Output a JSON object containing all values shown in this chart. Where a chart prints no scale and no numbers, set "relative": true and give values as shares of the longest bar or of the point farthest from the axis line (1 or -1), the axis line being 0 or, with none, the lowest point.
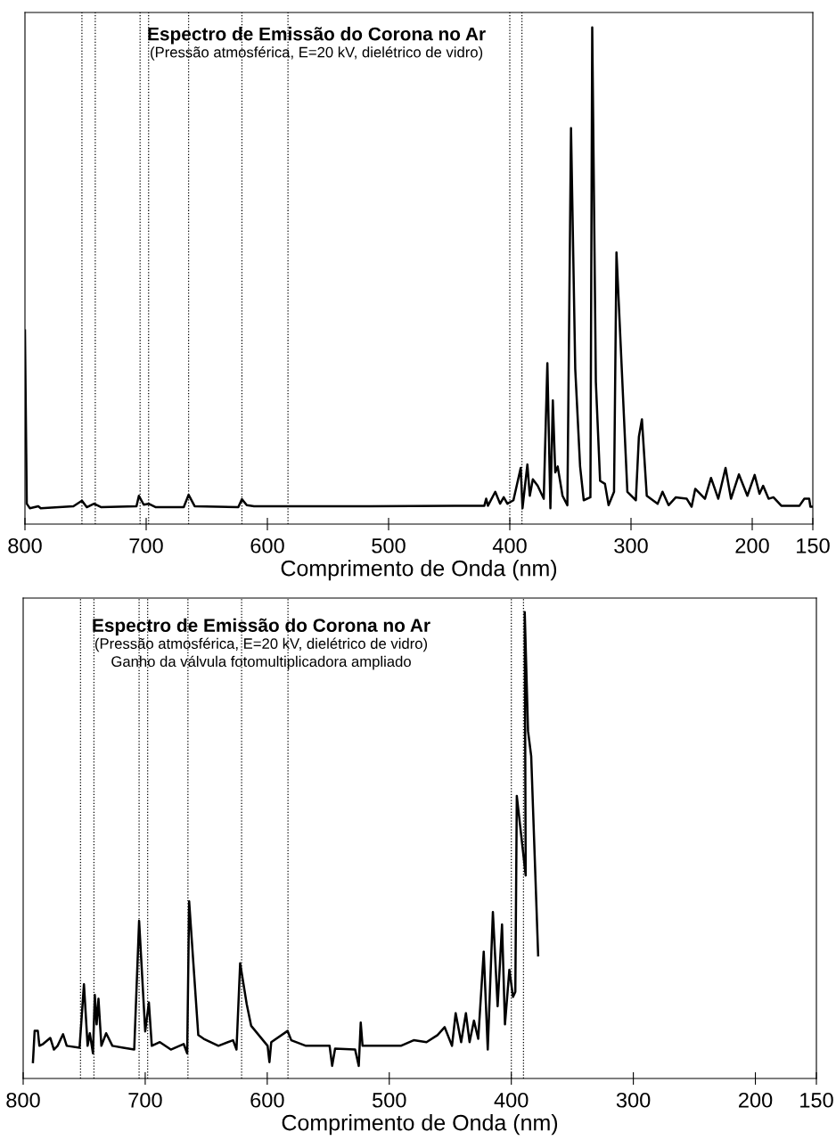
{
  "chart_data": [
    {
      "type": "line",
      "title": "Espectro de Emissão do Corona no Ar",
      "subtitle": "(Pressão atmosférica, E=20 kV, dielétrico de vidro)",
      "xlabel": "Comprimento de Onda (nm)",
      "relative": true,
      "xlim": [
        800,
        150
      ],
      "xticks": [
        800,
        700,
        600,
        500,
        400,
        300,
        200,
        150
      ],
      "line_style": "solid",
      "series": [
        {
          "color": "#000000",
          "x": [
            800,
            798.5,
            796,
            789,
            787,
            760,
            753,
            749,
            743,
            737,
            708,
            706,
            702,
            698,
            692,
            669,
            665,
            660,
            624,
            621,
            617,
            611,
            581,
            516,
            421,
            419.5,
            418,
            412,
            408,
            405,
            402,
            397,
            391,
            389.5,
            385.5,
            383.5,
            381,
            377,
            372,
            369,
            366.5,
            364.5,
            362.5,
            360.5,
            356.5,
            352.5,
            349.5,
            346,
            342,
            339,
            333.5,
            332,
            329,
            325.5,
            321.5,
            318.5,
            314,
            312,
            303,
            296,
            293.5,
            291,
            287,
            278,
            274,
            269,
            263,
            254,
            250,
            247,
            239,
            234,
            228,
            222,
            217.5,
            211,
            204,
            198,
            194,
            191,
            186.5,
            182.5,
            176,
            161,
            157,
            153,
            152,
            150
          ],
          "values": [
            0.39,
            0.041,
            0.032,
            0.036,
            0.032,
            0.036,
            0.047,
            0.034,
            0.041,
            0.034,
            0.036,
            0.057,
            0.039,
            0.041,
            0.034,
            0.034,
            0.059,
            0.036,
            0.034,
            0.05,
            0.038,
            0.036,
            0.036,
            0.036,
            0.037,
            0.051,
            0.037,
            0.065,
            0.041,
            0.054,
            0.041,
            0.048,
            0.113,
            0.032,
            0.12,
            0.057,
            0.09,
            0.077,
            0.051,
            0.324,
            0.032,
            0.249,
            0.104,
            0.116,
            0.057,
            0.038,
            0.797,
            0.312,
            0.116,
            0.048,
            0.054,
            1.0,
            0.286,
            0.087,
            0.081,
            0.038,
            0.065,
            0.547,
            0.065,
            0.048,
            0.176,
            0.211,
            0.057,
            0.041,
            0.065,
            0.038,
            0.054,
            0.051,
            0.035,
            0.071,
            0.051,
            0.093,
            0.051,
            0.113,
            0.051,
            0.1,
            0.057,
            0.099,
            0.061,
            0.077,
            0.051,
            0.054,
            0.037,
            0.037,
            0.051,
            0.051,
            0.035,
            0.035
          ]
        }
      ],
      "ref_lines": [
        {
          "axis": "x",
          "value": 753,
          "color": "#000000",
          "line_style": "dotted"
        },
        {
          "axis": "x",
          "value": 742,
          "color": "#000000",
          "line_style": "dotted"
        },
        {
          "axis": "x",
          "value": 705,
          "color": "#000000",
          "line_style": "dotted"
        },
        {
          "axis": "x",
          "value": 698,
          "color": "#000000",
          "line_style": "dotted"
        },
        {
          "axis": "x",
          "value": 665,
          "color": "#000000",
          "line_style": "dotted"
        },
        {
          "axis": "x",
          "value": 621,
          "color": "#000000",
          "line_style": "dotted"
        },
        {
          "axis": "x",
          "value": 583,
          "color": "#000000",
          "line_style": "dotted"
        },
        {
          "axis": "x",
          "value": 400,
          "color": "#000000",
          "line_style": "dotted"
        },
        {
          "axis": "x",
          "value": 390,
          "color": "#000000",
          "line_style": "dotted"
        }
      ]
    },
    {
      "type": "line",
      "title": "Espectro de Emissão do Corona no Ar",
      "subtitle": "(Pressão atmosférica, E=20 kV, dielétrico de vidro)",
      "annotations": [
        "Ganho da válvula fotomultiplicadora ampliado"
      ],
      "xlabel": "Comprimento de Onda (nm)",
      "relative": true,
      "xlim": [
        800,
        150
      ],
      "xticks": [
        800,
        700,
        600,
        500,
        400,
        300,
        200,
        150
      ],
      "line_style": "solid",
      "series": [
        {
          "color": "#000000",
          "x": [
            792,
            790.6,
            788,
            786.7,
            783.7,
            777.8,
            774.8,
            771.8,
            767.3,
            764.3,
            753.8,
            750.2,
            747.2,
            745.4,
            742.8,
            741.3,
            739.8,
            738.3,
            735.9,
            732,
            726.9,
            718,
            709,
            705,
            700,
            697,
            694.6,
            688,
            679,
            668.5,
            665.6,
            664,
            656.5,
            652,
            640,
            628,
            625.2,
            622.2,
            616.8,
            613.2,
            599.7,
            598.2,
            596.7,
            583.3,
            580.3,
            568.3,
            548.9,
            546.8,
            544.4,
            528,
            525,
            523.4,
            521.9,
            505.5,
            490.5,
            480,
            469.5,
            460.5,
            454.6,
            448.6,
            445.6,
            441.1,
            437.2,
            434.2,
            430.6,
            427.1,
            422.6,
            419.3,
            415.1,
            411.2,
            407.6,
            405.2,
            401.6,
            398.6,
            396.7,
            395.5,
            388.2,
            389,
            386.3,
            383.7,
            378
          ],
          "values": [
            0.035,
            0.102,
            0.102,
            0.07,
            0.074,
            0.087,
            0.062,
            0.07,
            0.095,
            0.07,
            0.066,
            0.202,
            0.07,
            0.097,
            0.054,
            0.179,
            0.116,
            0.171,
            0.07,
            0.097,
            0.07,
            0.066,
            0.062,
            0.338,
            0.101,
            0.163,
            0.07,
            0.078,
            0.062,
            0.074,
            0.054,
            0.38,
            0.093,
            0.085,
            0.07,
            0.082,
            0.062,
            0.247,
            0.159,
            0.113,
            0.07,
            0.035,
            0.078,
            0.102,
            0.082,
            0.07,
            0.07,
            0.027,
            0.064,
            0.062,
            0.027,
            0.12,
            0.07,
            0.07,
            0.07,
            0.082,
            0.078,
            0.093,
            0.11,
            0.07,
            0.14,
            0.078,
            0.14,
            0.078,
            0.124,
            0.085,
            0.272,
            0.062,
            0.357,
            0.155,
            0.33,
            0.116,
            0.233,
            0.175,
            0.186,
            0.606,
            0.435,
            1.0,
            0.745,
            0.691,
            0.264
          ]
        }
      ],
      "ref_lines": [
        {
          "axis": "x",
          "value": 753,
          "color": "#000000",
          "line_style": "dotted"
        },
        {
          "axis": "x",
          "value": 742,
          "color": "#000000",
          "line_style": "dotted"
        },
        {
          "axis": "x",
          "value": 705,
          "color": "#000000",
          "line_style": "dotted"
        },
        {
          "axis": "x",
          "value": 698,
          "color": "#000000",
          "line_style": "dotted"
        },
        {
          "axis": "x",
          "value": 665,
          "color": "#000000",
          "line_style": "dotted"
        },
        {
          "axis": "x",
          "value": 621,
          "color": "#000000",
          "line_style": "dotted"
        },
        {
          "axis": "x",
          "value": 583,
          "color": "#000000",
          "line_style": "dotted"
        },
        {
          "axis": "x",
          "value": 400,
          "color": "#000000",
          "line_style": "dotted"
        },
        {
          "axis": "x",
          "value": 390,
          "color": "#000000",
          "line_style": "dotted"
        }
      ]
    }
  ]
}
